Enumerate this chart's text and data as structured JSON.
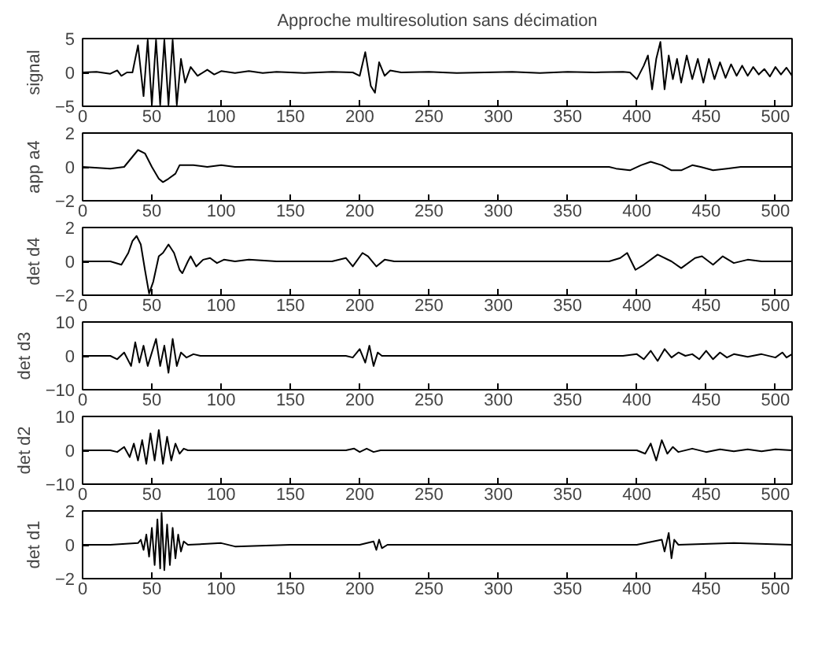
{
  "chart_data": [
    {
      "type": "line",
      "title": "Approche multiresolution sans décimation",
      "ylabel": "signal",
      "color": "#000000",
      "xlim": [
        0,
        512
      ],
      "xticks": [
        0,
        50,
        100,
        150,
        200,
        250,
        300,
        350,
        400,
        450,
        500
      ],
      "ylim": [
        -5,
        5
      ],
      "yticks": [
        -5,
        0,
        5
      ],
      "x": [
        0,
        10,
        20,
        25,
        28,
        32,
        36,
        40,
        44,
        47,
        50,
        53,
        56,
        59,
        62,
        65,
        68,
        71,
        74,
        78,
        83,
        90,
        95,
        100,
        110,
        120,
        130,
        140,
        160,
        180,
        195,
        200,
        204,
        208,
        211,
        214,
        218,
        222,
        230,
        250,
        270,
        290,
        310,
        330,
        350,
        370,
        390,
        395,
        400,
        405,
        408,
        411,
        414,
        417,
        420,
        423,
        426,
        429,
        432,
        436,
        440,
        444,
        448,
        452,
        456,
        460,
        464,
        468,
        472,
        476,
        480,
        484,
        488,
        492,
        496,
        500,
        504,
        508,
        512
      ],
      "values": [
        0,
        0.1,
        -0.2,
        0.3,
        -0.5,
        0,
        0,
        4,
        -3.5,
        4.8,
        -4.8,
        4.8,
        -4.8,
        4.8,
        -4.8,
        4.8,
        -4.8,
        2,
        -1.5,
        0.8,
        -0.5,
        0.4,
        -0.3,
        0.2,
        -0.1,
        0.2,
        -0.1,
        0.1,
        -0.1,
        0.1,
        0,
        -0.5,
        3,
        -2,
        -3,
        1.5,
        -0.5,
        0.3,
        0,
        0.1,
        -0.1,
        0,
        0.1,
        -0.1,
        0.1,
        0,
        0.1,
        0,
        -1,
        1,
        2.5,
        -2.5,
        2,
        4.5,
        -2.5,
        2.5,
        -1,
        2,
        -1.5,
        2.5,
        -1,
        2,
        -1.5,
        2,
        -1,
        1.5,
        -0.8,
        1.2,
        -0.5,
        1,
        -0.5,
        0.8,
        -0.3,
        0.5,
        -0.6,
        0.8,
        -0.3,
        0.7,
        -0.5
      ]
    },
    {
      "type": "line",
      "ylabel": "app a4",
      "color": "#000000",
      "xlim": [
        0,
        512
      ],
      "xticks": [
        0,
        50,
        100,
        150,
        200,
        250,
        300,
        350,
        400,
        450,
        500
      ],
      "ylim": [
        -2,
        2
      ],
      "yticks": [
        -2,
        0,
        2
      ],
      "x": [
        0,
        20,
        30,
        35,
        40,
        45,
        50,
        55,
        58,
        62,
        67,
        70,
        80,
        90,
        100,
        110,
        150,
        180,
        200,
        220,
        250,
        280,
        300,
        350,
        370,
        380,
        385,
        395,
        403,
        410,
        418,
        425,
        432,
        440,
        446,
        455,
        465,
        475,
        485,
        495,
        512
      ],
      "values": [
        0,
        -0.1,
        0,
        0.5,
        1,
        0.8,
        0,
        -0.7,
        -0.9,
        -0.7,
        -0.4,
        0.1,
        0.1,
        0,
        0.1,
        0,
        0,
        0,
        0,
        0,
        0,
        0,
        0,
        0,
        0,
        0,
        -0.1,
        -0.2,
        0.1,
        0.3,
        0.1,
        -0.2,
        -0.2,
        0.1,
        0,
        -0.2,
        -0.1,
        0,
        0,
        0,
        0
      ]
    },
    {
      "type": "line",
      "ylabel": "det d4",
      "color": "#000000",
      "xlim": [
        0,
        512
      ],
      "xticks": [
        0,
        50,
        100,
        150,
        200,
        250,
        300,
        350,
        400,
        450,
        500
      ],
      "ylim": [
        -2,
        2
      ],
      "yticks": [
        -2,
        0,
        2
      ],
      "x": [
        0,
        20,
        28,
        33,
        36,
        39,
        42,
        45,
        48,
        51,
        55,
        58,
        62,
        66,
        70,
        72,
        76,
        78,
        82,
        87,
        92,
        97,
        102,
        110,
        120,
        140,
        160,
        180,
        190,
        195,
        202,
        206,
        212,
        218,
        225,
        250,
        300,
        370,
        380,
        388,
        393,
        399,
        405,
        415,
        425,
        432,
        442,
        447,
        455,
        462,
        470,
        480,
        490,
        512
      ],
      "values": [
        0,
        0,
        -0.2,
        0.5,
        1.2,
        1.5,
        1,
        -0.5,
        -1.9,
        -1.2,
        0.3,
        0.5,
        1,
        0.5,
        -0.5,
        -0.7,
        0,
        0.3,
        -0.3,
        0.1,
        0.2,
        -0.1,
        0.1,
        0,
        0.1,
        0,
        0,
        0,
        0.2,
        -0.3,
        0.5,
        0.3,
        -0.3,
        0.1,
        0,
        0,
        0,
        0,
        0,
        0.2,
        0.5,
        -0.5,
        -0.2,
        0.4,
        0,
        -0.4,
        0.2,
        0.3,
        -0.2,
        0.3,
        -0.1,
        0.1,
        0,
        0
      ]
    },
    {
      "type": "line",
      "ylabel": "det d3",
      "color": "#000000",
      "xlim": [
        0,
        512
      ],
      "xticks": [
        0,
        50,
        100,
        150,
        200,
        250,
        300,
        350,
        400,
        450,
        500
      ],
      "ylim": [
        -10,
        10
      ],
      "yticks": [
        -10,
        0,
        10
      ],
      "x": [
        0,
        20,
        25,
        30,
        35,
        38,
        41,
        44,
        47,
        50,
        53,
        56,
        59,
        62,
        65,
        68,
        71,
        75,
        80,
        85,
        90,
        190,
        195,
        200,
        204,
        207,
        210,
        213,
        216,
        390,
        400,
        405,
        410,
        415,
        420,
        425,
        430,
        435,
        440,
        445,
        450,
        455,
        460,
        465,
        470,
        480,
        490,
        500,
        505,
        508,
        512
      ],
      "values": [
        0,
        0,
        -1,
        1,
        -3,
        4,
        -2,
        3,
        -3,
        1,
        5,
        -3,
        3,
        -5,
        5,
        -3,
        1,
        -0.5,
        0.5,
        0,
        0,
        0,
        -0.5,
        2,
        -2,
        3,
        -3,
        1,
        0,
        0,
        0.5,
        -1,
        1.5,
        -1.5,
        2,
        -0.5,
        1,
        0,
        0.5,
        -1,
        1.5,
        -1,
        1,
        -0.5,
        0.5,
        -0.3,
        0.5,
        -0.5,
        1,
        -0.5,
        0.5
      ]
    },
    {
      "type": "line",
      "ylabel": "det d2",
      "color": "#000000",
      "xlim": [
        0,
        512
      ],
      "xticks": [
        0,
        50,
        100,
        150,
        200,
        250,
        300,
        350,
        400,
        450,
        500
      ],
      "ylim": [
        -10,
        10
      ],
      "yticks": [
        -10,
        0,
        10
      ],
      "x": [
        0,
        20,
        25,
        30,
        34,
        37,
        40,
        43,
        46,
        49,
        52,
        55,
        58,
        61,
        64,
        67,
        70,
        73,
        76,
        190,
        196,
        200,
        205,
        210,
        215,
        400,
        406,
        410,
        414,
        418,
        422,
        426,
        430,
        440,
        450,
        460,
        470,
        480,
        490,
        500,
        512
      ],
      "values": [
        0,
        0,
        -0.5,
        1,
        -2,
        2,
        -3,
        3,
        -4,
        5,
        -3,
        6,
        -4,
        4,
        -3,
        2,
        -1,
        0.5,
        0,
        0,
        0.5,
        -0.5,
        0.5,
        -0.5,
        0,
        0,
        -1,
        2,
        -3,
        3,
        -1,
        1,
        -0.5,
        0.5,
        -0.5,
        0.3,
        -0.3,
        0.3,
        -0.3,
        0.3,
        0
      ]
    },
    {
      "type": "line",
      "ylabel": "det d1",
      "color": "#000000",
      "xlim": [
        0,
        512
      ],
      "xticks": [
        0,
        50,
        100,
        150,
        200,
        250,
        300,
        350,
        400,
        450,
        500
      ],
      "ylim": [
        -2,
        2
      ],
      "yticks": [
        -2,
        0,
        2
      ],
      "x": [
        0,
        20,
        40,
        42,
        44,
        46,
        48,
        50,
        52,
        54,
        56,
        57,
        59,
        61,
        63,
        65,
        67,
        69,
        71,
        73,
        76,
        100,
        110,
        150,
        200,
        210,
        212,
        214,
        216,
        220,
        250,
        300,
        400,
        418,
        420,
        423,
        425,
        427,
        430,
        470,
        512
      ],
      "values": [
        0,
        0,
        0.1,
        0.3,
        -0.3,
        0.6,
        -0.7,
        1,
        -1.2,
        1.5,
        -1.4,
        1.9,
        -1.5,
        1.2,
        -1.2,
        1,
        -0.8,
        0.6,
        -0.4,
        0.2,
        0,
        0.1,
        -0.1,
        0,
        0,
        0.2,
        -0.3,
        0.3,
        -0.2,
        0,
        0,
        0,
        0,
        0.3,
        -0.4,
        0.7,
        -0.8,
        0.3,
        0,
        0.1,
        0
      ]
    }
  ]
}
